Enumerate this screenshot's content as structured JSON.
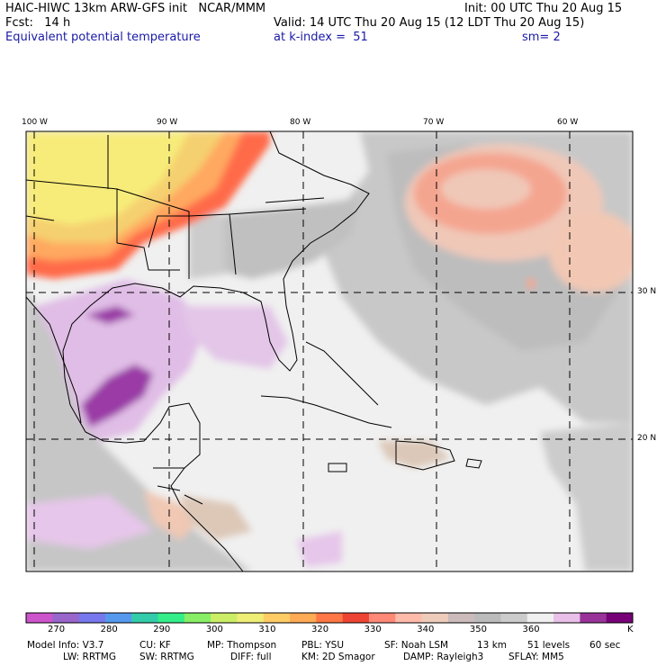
{
  "header": {
    "model_line": "HAIC-HIWC 13km ARW-GFS init   NCAR/MMM",
    "init_line": "Init: 00 UTC Thu 20 Aug 15",
    "fcst_line": "Fcst:   14 h",
    "valid_line": "Valid: 14 UTC Thu 20 Aug 15 (12 LDT Thu 20 Aug 15)",
    "field_name": "Equivalent potential temperature",
    "level_line": "at k-index =  51",
    "smooth_line": "sm= 2"
  },
  "map": {
    "lon_labels": [
      "100 W",
      "90 W",
      "80 W",
      "70 W",
      "60 W"
    ],
    "lat_labels": [
      "30 N",
      "20 N"
    ]
  },
  "colorbar": {
    "unit": "K",
    "tick_labels": [
      "270",
      "280",
      "290",
      "300",
      "310",
      "320",
      "330",
      "340",
      "350",
      "360"
    ],
    "colors": [
      "#cc55cc",
      "#9966cc",
      "#7777ee",
      "#5599ee",
      "#33ccaa",
      "#33ee88",
      "#88ee66",
      "#ccee66",
      "#eeee77",
      "#ffcc66",
      "#ffaa55",
      "#ff7744",
      "#ee4433",
      "#ff8877",
      "#ffbbaa",
      "#eeccbb",
      "#ccbbbb",
      "#bbbbbb",
      "#cccccc",
      "#f0f0f0",
      "#e8c0e8",
      "#993399",
      "#770077"
    ]
  },
  "footer": {
    "line1": [
      "Model Info: V3.7",
      "CU: KF",
      "MP: Thompson",
      "PBL: YSU",
      "SF: Noah LSM",
      "13 km",
      "51 levels",
      "60 sec"
    ],
    "line2": [
      "LW: RRTMG",
      "SW: RRTMG",
      "DIFF: full",
      "KM: 2D Smagor",
      "DAMP: Rayleigh3",
      "SFLAY: MM5"
    ]
  }
}
